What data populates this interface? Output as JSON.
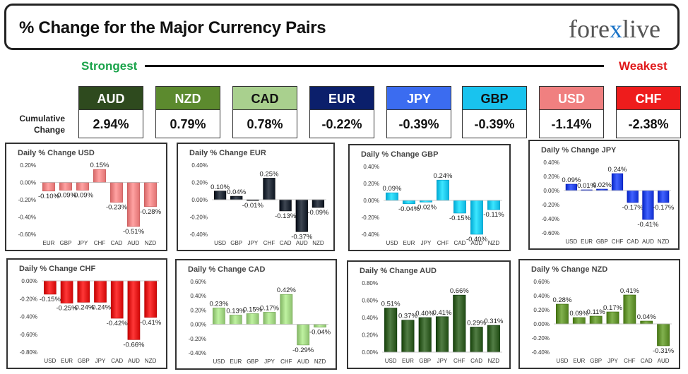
{
  "header": {
    "title": "% Change for the Major Currency Pairs",
    "logo_left": "fore",
    "logo_x": "x",
    "logo_right": "live"
  },
  "strongest_label": "Strongest",
  "weakest_label": "Weakest",
  "cumulative_label": [
    "Cumulative",
    "Change"
  ],
  "ranking": [
    {
      "name": "AUD",
      "value": "2.94%",
      "bg": "#2e4a1e",
      "fg": "#ffffff"
    },
    {
      "name": "NZD",
      "value": "0.79%",
      "bg": "#5c8a2e",
      "fg": "#ffffff"
    },
    {
      "name": "CAD",
      "value": "0.78%",
      "bg": "#a9d08e",
      "fg": "#111111"
    },
    {
      "name": "EUR",
      "value": "-0.22%",
      "bg": "#0b1f6b",
      "fg": "#ffffff"
    },
    {
      "name": "JPY",
      "value": "-0.39%",
      "bg": "#3b6cf0",
      "fg": "#ffffff"
    },
    {
      "name": "GBP",
      "value": "-0.39%",
      "bg": "#19c3ee",
      "fg": "#111111"
    },
    {
      "name": "USD",
      "value": "-1.14%",
      "bg": "#f08080",
      "fg": "#ffffff"
    },
    {
      "name": "CHF",
      "value": "-2.38%",
      "bg": "#ee1c1c",
      "fg": "#ffffff"
    }
  ],
  "chart_data": [
    {
      "type": "bar",
      "title": "Daily % Change USD",
      "categories": [
        "EUR",
        "GBP",
        "JPY",
        "CHF",
        "CAD",
        "AUD",
        "NZD"
      ],
      "values": [
        -0.1,
        -0.09,
        -0.09,
        0.15,
        -0.23,
        -0.51,
        -0.28
      ],
      "labels": [
        "-0.10%",
        "-0.09%",
        "-0.09%",
        "0.15%",
        "-0.23%",
        "-0.51%",
        "-0.28%"
      ],
      "ylim": [
        -0.6,
        0.2
      ],
      "yticks": [
        -0.6,
        -0.4,
        -0.2,
        0.0,
        0.2
      ],
      "tick_labels": [
        "-0.60%",
        "-0.40%",
        "-0.20%",
        "0.00%",
        "0.20%"
      ],
      "color": "#f08080"
    },
    {
      "type": "bar",
      "title": "Daily % Change EUR",
      "categories": [
        "USD",
        "GBP",
        "JPY",
        "CHF",
        "CAD",
        "AUD",
        "NZD"
      ],
      "values": [
        0.1,
        0.04,
        -0.01,
        0.25,
        -0.13,
        -0.37,
        -0.09
      ],
      "labels": [
        "0.10%",
        "0.04%",
        "-0.01%",
        "0.25%",
        "-0.13%",
        "-0.37%",
        "-0.09%"
      ],
      "ylim": [
        -0.4,
        0.4
      ],
      "yticks": [
        -0.4,
        -0.2,
        0.0,
        0.2,
        0.4
      ],
      "tick_labels": [
        "-0.40%",
        "-0.20%",
        "0.00%",
        "0.20%",
        "0.40%"
      ],
      "color": "#1c2430"
    },
    {
      "type": "bar",
      "title": "Daily % Change GBP",
      "categories": [
        "USD",
        "EUR",
        "JPY",
        "CHF",
        "CAD",
        "AUD",
        "NZD"
      ],
      "values": [
        0.09,
        -0.04,
        -0.02,
        0.24,
        -0.15,
        -0.4,
        -0.11
      ],
      "labels": [
        "0.09%",
        "-0.04%",
        "-0.02%",
        "0.24%",
        "-0.15%",
        "-0.40%",
        "-0.11%"
      ],
      "ylim": [
        -0.4,
        0.4
      ],
      "yticks": [
        -0.4,
        -0.2,
        0.0,
        0.2,
        0.4
      ],
      "tick_labels": [
        "-0.40%",
        "-0.20%",
        "0.00%",
        "0.20%",
        "0.40%"
      ],
      "color": "#19c3ee"
    },
    {
      "type": "bar",
      "title": "Daily % Change JPY",
      "categories": [
        "USD",
        "EUR",
        "GBP",
        "CHF",
        "CAD",
        "AUD",
        "NZD"
      ],
      "values": [
        0.09,
        0.01,
        0.02,
        0.24,
        -0.17,
        -0.41,
        -0.17
      ],
      "labels": [
        "0.09%",
        "0.01%",
        "0.02%",
        "0.24%",
        "-0.17%",
        "-0.41%",
        "-0.17%"
      ],
      "ylim": [
        -0.6,
        0.4
      ],
      "yticks": [
        -0.6,
        -0.4,
        -0.2,
        0.0,
        0.2,
        0.4
      ],
      "tick_labels": [
        "-0.60%",
        "-0.40%",
        "-0.20%",
        "0.00%",
        "0.20%",
        "0.40%"
      ],
      "color": "#1f3fe0"
    },
    {
      "type": "bar",
      "title": "Daily % Change CHF",
      "categories": [
        "USD",
        "EUR",
        "GBP",
        "JPY",
        "CAD",
        "AUD",
        "NZD"
      ],
      "values": [
        -0.15,
        -0.25,
        -0.24,
        -0.24,
        -0.42,
        -0.66,
        -0.41
      ],
      "labels": [
        "-0.15%",
        "-0.25%",
        "-0.24%",
        "-0.24%",
        "-0.42%",
        "-0.66%",
        "-0.41%"
      ],
      "ylim": [
        -0.8,
        0.0
      ],
      "yticks": [
        -0.8,
        -0.6,
        -0.4,
        -0.2,
        0.0
      ],
      "tick_labels": [
        "-0.80%",
        "-0.60%",
        "-0.40%",
        "-0.20%",
        "0.00%"
      ],
      "color": "#e01515"
    },
    {
      "type": "bar",
      "title": "Daily % Change CAD",
      "categories": [
        "USD",
        "EUR",
        "GBP",
        "JPY",
        "CHF",
        "AUD",
        "NZD"
      ],
      "values": [
        0.23,
        0.13,
        0.15,
        0.17,
        0.42,
        -0.29,
        -0.04
      ],
      "labels": [
        "0.23%",
        "0.13%",
        "0.15%",
        "0.17%",
        "0.42%",
        "-0.29%",
        "-0.04%"
      ],
      "ylim": [
        -0.4,
        0.6
      ],
      "yticks": [
        -0.4,
        -0.2,
        0.0,
        0.2,
        0.4,
        0.6
      ],
      "tick_labels": [
        "-0.40%",
        "-0.20%",
        "0.00%",
        "0.20%",
        "0.40%",
        "0.60%"
      ],
      "color": "#9ccf7e"
    },
    {
      "type": "bar",
      "title": "Daily % Change AUD",
      "categories": [
        "USD",
        "EUR",
        "GBP",
        "JPY",
        "CHF",
        "CAD",
        "NZD"
      ],
      "values": [
        0.51,
        0.37,
        0.4,
        0.41,
        0.66,
        0.29,
        0.31
      ],
      "labels": [
        "0.51%",
        "0.37%",
        "0.40%",
        "0.41%",
        "0.66%",
        "0.29%",
        "0.31%"
      ],
      "ylim": [
        0.0,
        0.8
      ],
      "yticks": [
        0.0,
        0.2,
        0.4,
        0.6,
        0.8
      ],
      "tick_labels": [
        "0.00%",
        "0.20%",
        "0.40%",
        "0.60%",
        "0.80%"
      ],
      "color": "#2f5a22"
    },
    {
      "type": "bar",
      "title": "Daily % Change NZD",
      "categories": [
        "USD",
        "EUR",
        "GBP",
        "JPY",
        "CHF",
        "CAD",
        "AUD"
      ],
      "values": [
        0.28,
        0.09,
        0.11,
        0.17,
        0.41,
        0.04,
        -0.31
      ],
      "labels": [
        "0.28%",
        "0.09%",
        "0.11%",
        "0.17%",
        "0.41%",
        "0.04%",
        "-0.31%"
      ],
      "ylim": [
        -0.4,
        0.6
      ],
      "yticks": [
        -0.4,
        -0.2,
        0.0,
        0.2,
        0.4,
        0.6
      ],
      "tick_labels": [
        "-0.40%",
        "-0.20%",
        "0.00%",
        "0.20%",
        "0.40%",
        "0.60%"
      ],
      "color": "#5f8f2c"
    }
  ]
}
